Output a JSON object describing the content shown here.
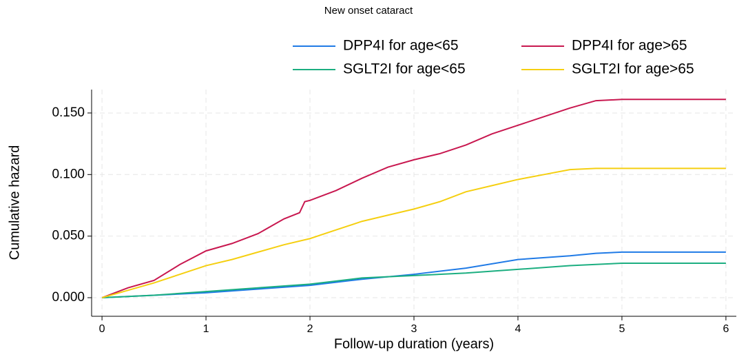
{
  "chart_data": {
    "type": "line",
    "title": "New onset cataract",
    "x_label": "Follow-up duration (years)",
    "y_label": "Cumulative hazard",
    "xlim": [
      -0.1,
      6.1
    ],
    "ylim": [
      -0.0151,
      0.169
    ],
    "xticks": [
      0,
      1,
      2,
      3,
      4,
      5,
      6
    ],
    "yticks": [
      {
        "value": 0,
        "label": "0.000"
      },
      {
        "value": 0.05,
        "label": "0.050"
      },
      {
        "value": 0.1,
        "label": "0.100"
      },
      {
        "value": 0.15,
        "label": "0.150"
      }
    ],
    "grid": true,
    "series": [
      {
        "name": "DPP4I for age<65",
        "color": "#1f7ae6",
        "x": [
          0,
          0.5,
          1,
          1.5,
          2,
          2.5,
          3,
          3.5,
          4,
          4.5,
          4.75,
          5,
          6
        ],
        "values": [
          0,
          0.002,
          0.004,
          0.007,
          0.01,
          0.015,
          0.019,
          0.024,
          0.031,
          0.034,
          0.036,
          0.037,
          0.037
        ]
      },
      {
        "name": "DPP4I for age>65",
        "color": "#c8174f",
        "x": [
          0,
          0.25,
          0.5,
          0.75,
          1,
          1.25,
          1.5,
          1.75,
          1.9,
          1.95,
          2,
          2.25,
          2.5,
          2.75,
          3,
          3.25,
          3.5,
          3.75,
          4,
          4.25,
          4.5,
          4.75,
          5,
          6
        ],
        "values": [
          0,
          0.008,
          0.014,
          0.027,
          0.038,
          0.044,
          0.052,
          0.064,
          0.069,
          0.078,
          0.079,
          0.087,
          0.097,
          0.106,
          0.112,
          0.117,
          0.124,
          0.133,
          0.14,
          0.147,
          0.154,
          0.16,
          0.161,
          0.161
        ]
      },
      {
        "name": "SGLT2I for age<65",
        "color": "#1bae80",
        "x": [
          0,
          0.5,
          1,
          1.5,
          2,
          2.5,
          3,
          3.5,
          4,
          4.5,
          4.75,
          5,
          6
        ],
        "values": [
          0,
          0.002,
          0.005,
          0.008,
          0.011,
          0.016,
          0.018,
          0.02,
          0.023,
          0.026,
          0.027,
          0.028,
          0.028
        ]
      },
      {
        "name": "SGLT2I for age>65",
        "color": "#f5cf10",
        "x": [
          0,
          0.25,
          0.5,
          0.75,
          1,
          1.25,
          1.5,
          1.75,
          2,
          2.25,
          2.5,
          2.75,
          3,
          3.25,
          3.5,
          3.75,
          4,
          4.25,
          4.5,
          4.75,
          5,
          6
        ],
        "values": [
          0,
          0.006,
          0.012,
          0.019,
          0.026,
          0.031,
          0.037,
          0.043,
          0.048,
          0.055,
          0.062,
          0.067,
          0.072,
          0.078,
          0.086,
          0.091,
          0.096,
          0.1,
          0.104,
          0.105,
          0.105,
          0.105
        ]
      }
    ]
  }
}
